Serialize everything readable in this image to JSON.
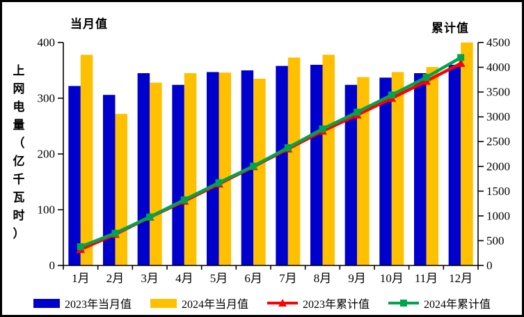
{
  "chart_data": {
    "type": "combo-bar-line",
    "title": "",
    "categories": [
      "1月",
      "2月",
      "3月",
      "4月",
      "5月",
      "6月",
      "7月",
      "8月",
      "9月",
      "10月",
      "11月",
      "12月"
    ],
    "series": [
      {
        "name": "2023年当月值",
        "type": "bar",
        "axis": "left",
        "color": "#0000CD",
        "values": [
          322,
          306,
          345,
          324,
          347,
          350,
          358,
          360,
          324,
          337,
          345,
          360
        ]
      },
      {
        "name": "2024年当月值",
        "type": "bar",
        "axis": "left",
        "color": "#FFC000",
        "values": [
          378,
          272,
          328,
          345,
          346,
          335,
          373,
          378,
          338,
          347,
          356,
          400
        ]
      },
      {
        "name": "2023年累计值",
        "type": "line",
        "axis": "right",
        "color": "#FF0000",
        "marker": "triangle",
        "values": [
          322,
          628,
          973,
          1297,
          1644,
          1994,
          2352,
          2712,
          3036,
          3373,
          3718,
          4078
        ]
      },
      {
        "name": "2024年累计值",
        "type": "line",
        "axis": "right",
        "color": "#00A44F",
        "marker": "square",
        "values": [
          378,
          650,
          978,
          1323,
          1669,
          2004,
          2377,
          2755,
          3093,
          3440,
          3796,
          4196
        ]
      }
    ],
    "left_axis": {
      "title": "当月值",
      "min": 0,
      "max": 400,
      "step": 100,
      "ticks": [
        0,
        100,
        200,
        300,
        400
      ]
    },
    "right_axis": {
      "title": "累计值",
      "min": 0,
      "max": 4500,
      "step": 500,
      "ticks": [
        0,
        500,
        1000,
        1500,
        2000,
        2500,
        3000,
        3500,
        4000,
        4500
      ]
    },
    "y_axis_label": "上网电量（亿千瓦时）",
    "grid": false,
    "legend_position": "bottom"
  }
}
